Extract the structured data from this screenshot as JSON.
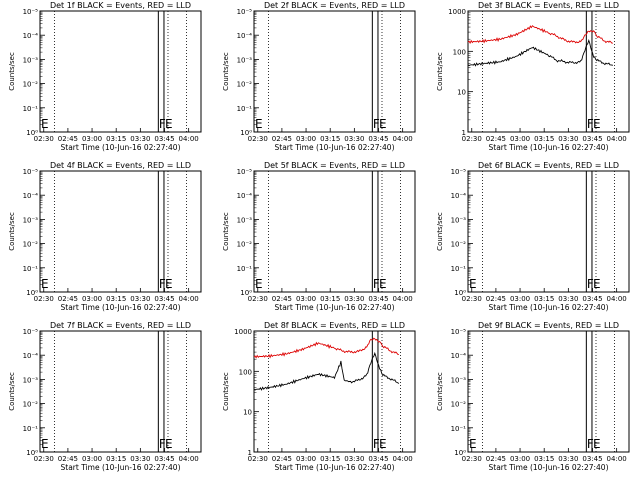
{
  "colors": {
    "events": "#000000",
    "lld": "#dd0000",
    "axis": "#000000"
  },
  "x_ticks": [
    "02:30",
    "02:45",
    "03:00",
    "03:15",
    "03:30",
    "03:45",
    "04:00"
  ],
  "xlabel": "Start Time (10-Jun-16 02:27:40)",
  "ylabel": "Counts/sec",
  "markers": {
    "F": "F",
    "E": "E"
  },
  "chart_data": [
    {
      "type": "line",
      "title": "Det 1f BLACK = Events, RED = LLD",
      "y_scale": "log",
      "y_ticks": [
        "10⁰",
        "10⁻¹",
        "10⁻²",
        "10⁻³",
        "10⁻⁴",
        "10⁻⁵"
      ],
      "has_data": false,
      "series": []
    },
    {
      "type": "line",
      "title": "Det 2f BLACK = Events, RED = LLD",
      "y_scale": "log",
      "y_ticks": [
        "10⁰",
        "10⁻¹",
        "10⁻²",
        "10⁻³",
        "10⁻⁴",
        "10⁻⁵"
      ],
      "has_data": false,
      "series": []
    },
    {
      "type": "line",
      "title": "Det 3f BLACK = Events, RED = LLD",
      "y_scale": "log",
      "y_ticks": [
        "1",
        "10",
        "100",
        "1000"
      ],
      "ylim": [
        1,
        1000
      ],
      "has_data": true,
      "series": [
        {
          "color": "red",
          "x_min": [
            0,
            10,
            20,
            30,
            40,
            50,
            55,
            60,
            65,
            70,
            72,
            75,
            78,
            80,
            85,
            90
          ],
          "y": [
            170,
            180,
            200,
            260,
            420,
            290,
            240,
            190,
            170,
            175,
            220,
            320,
            330,
            240,
            180,
            160
          ]
        },
        {
          "color": "black",
          "x_min": [
            0,
            10,
            20,
            30,
            40,
            50,
            55,
            60,
            65,
            70,
            72,
            75,
            78,
            80,
            85,
            90
          ],
          "y": [
            45,
            50,
            55,
            75,
            125,
            80,
            60,
            55,
            52,
            55,
            90,
            180,
            75,
            60,
            50,
            45
          ]
        }
      ]
    },
    {
      "type": "line",
      "title": "Det 4f BLACK = Events, RED = LLD",
      "y_scale": "log",
      "y_ticks": [
        "10⁰",
        "10⁻¹",
        "10⁻²",
        "10⁻³",
        "10⁻⁴",
        "10⁻⁵"
      ],
      "has_data": false,
      "series": []
    },
    {
      "type": "line",
      "title": "Det 5f BLACK = Events, RED = LLD",
      "y_scale": "log",
      "y_ticks": [
        "10⁰",
        "10⁻¹",
        "10⁻²",
        "10⁻³",
        "10⁻⁴",
        "10⁻⁵"
      ],
      "has_data": false,
      "series": []
    },
    {
      "type": "line",
      "title": "Det 6f BLACK = Events, RED = LLD",
      "y_scale": "log",
      "y_ticks": [
        "10⁰",
        "10⁻¹",
        "10⁻²",
        "10⁻³",
        "10⁻⁴",
        "10⁻⁵"
      ],
      "has_data": false,
      "series": []
    },
    {
      "type": "line",
      "title": "Det 7f BLACK = Events, RED = LLD",
      "y_scale": "log",
      "y_ticks": [
        "10⁰",
        "10⁻¹",
        "10⁻²",
        "10⁻³",
        "10⁻⁴",
        "10⁻⁵"
      ],
      "has_data": false,
      "series": []
    },
    {
      "type": "line",
      "title": "Det 8f BLACK = Events, RED = LLD",
      "y_scale": "log",
      "y_ticks": [
        "1",
        "10",
        "100",
        "1000"
      ],
      "ylim": [
        1,
        1000
      ],
      "has_data": true,
      "series": [
        {
          "color": "red",
          "x_min": [
            0,
            10,
            20,
            30,
            40,
            50,
            55,
            60,
            65,
            70,
            72,
            75,
            78,
            80,
            85,
            90
          ],
          "y": [
            230,
            240,
            270,
            350,
            500,
            380,
            320,
            300,
            310,
            400,
            560,
            650,
            560,
            420,
            320,
            260
          ]
        },
        {
          "color": "black",
          "x_min": [
            0,
            10,
            20,
            30,
            40,
            50,
            54,
            56,
            60,
            65,
            70,
            72,
            75,
            78,
            80,
            85,
            90
          ],
          "y": [
            35,
            40,
            48,
            65,
            85,
            70,
            170,
            60,
            55,
            60,
            80,
            140,
            270,
            120,
            80,
            65,
            50
          ]
        }
      ]
    },
    {
      "type": "line",
      "title": "Det 9f BLACK = Events, RED = LLD",
      "y_scale": "log",
      "y_ticks": [
        "10⁰",
        "10⁻¹",
        "10⁻²",
        "10⁻³",
        "10⁻⁴",
        "10⁻⁵"
      ],
      "has_data": false,
      "series": []
    }
  ]
}
